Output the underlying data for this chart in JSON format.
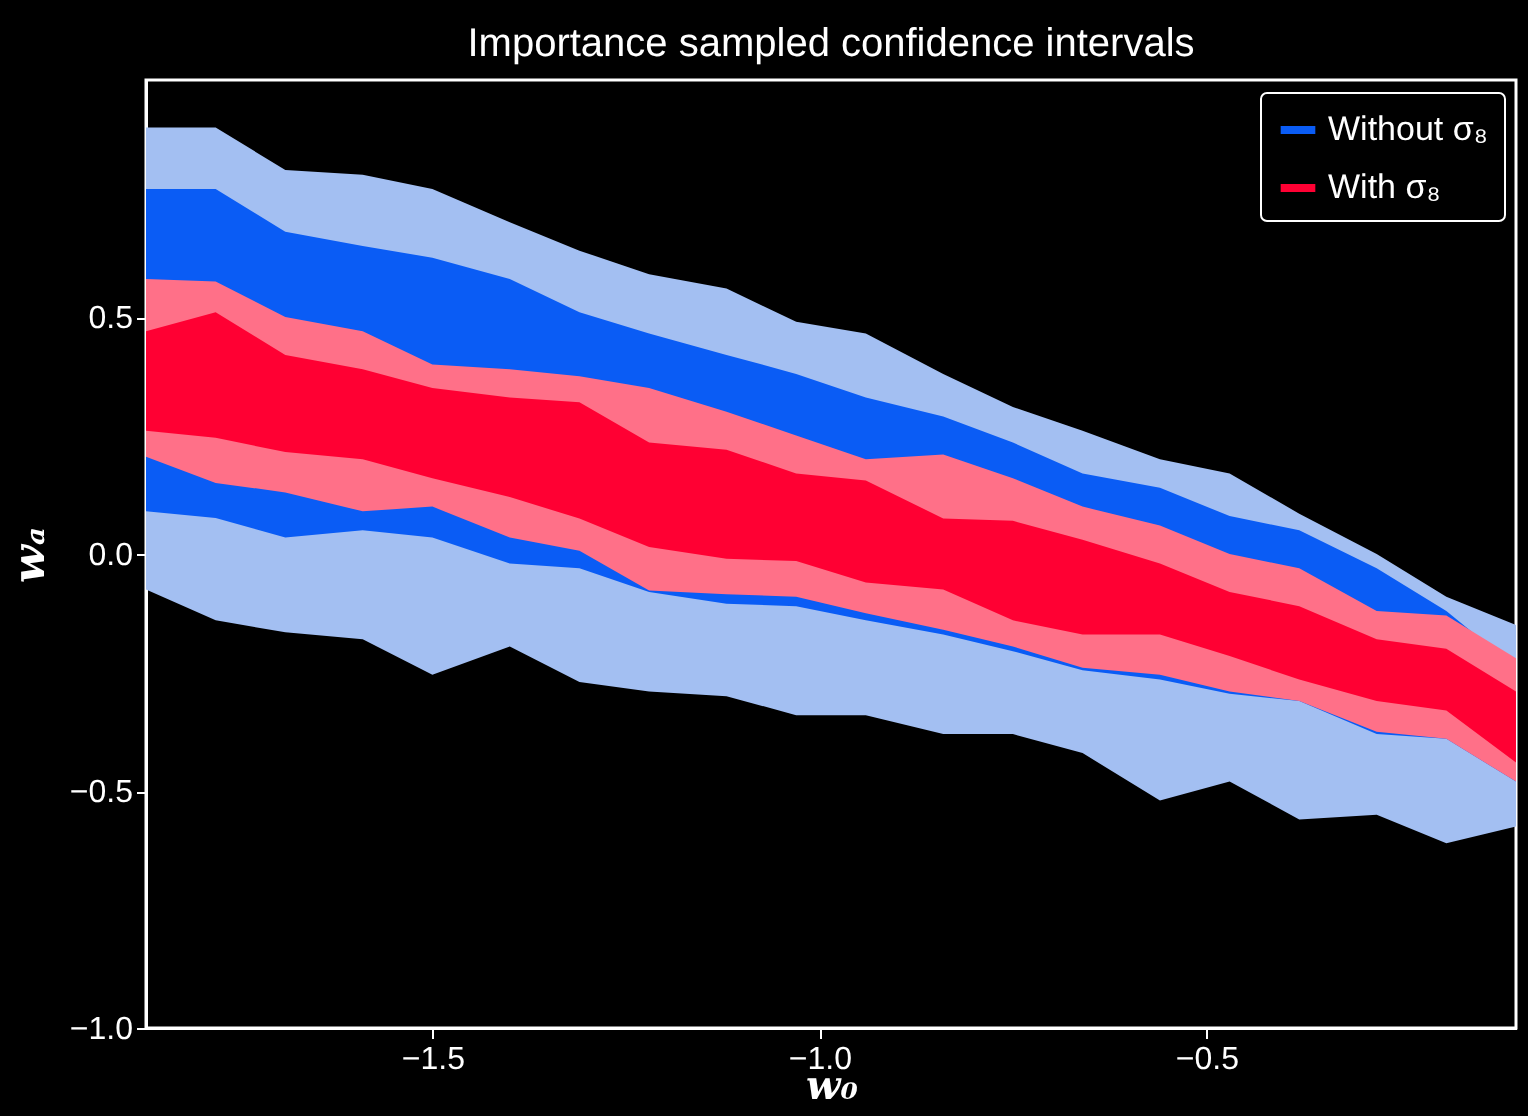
{
  "chart_data": {
    "type": "area",
    "title": "Importance sampled confidence intervals",
    "xlabel": "w₀",
    "ylabel": "wₐ",
    "x": [
      -1.87,
      -1.78,
      -1.69,
      -1.59,
      -1.5,
      -1.4,
      -1.31,
      -1.22,
      -1.12,
      -1.03,
      -0.94,
      -0.84,
      -0.75,
      -0.66,
      -0.56,
      -0.47,
      -0.38,
      -0.28,
      -0.19,
      -0.1
    ],
    "xlim": [
      -1.87,
      -0.1
    ],
    "xticks": [
      {
        "value": -1.5,
        "label": "−1.5"
      },
      {
        "value": -1,
        "label": "−1.0"
      },
      {
        "value": -0.5,
        "label": "−0.5"
      }
    ],
    "ylim": [
      -1,
      1
    ],
    "yticks": [
      {
        "value": -1,
        "label": "−1.0"
      },
      {
        "value": -0.5,
        "label": "−0.5"
      },
      {
        "value": 0,
        "label": "0.0"
      },
      {
        "value": 0.5,
        "label": "0.5"
      }
    ],
    "grid": false,
    "legend": "top right",
    "series": [
      {
        "color": "#a3bff2",
        "lower": [
          -0.075,
          -0.14,
          -0.165,
          -0.18,
          -0.255,
          -0.195,
          -0.27,
          -0.29,
          -0.3,
          -0.34,
          -0.34,
          -0.38,
          -0.38,
          -0.42,
          -0.52,
          -0.48,
          -0.56,
          -0.55,
          -0.61,
          -0.575
        ],
        "values": [
          null,
          null,
          null,
          null,
          null,
          null,
          null,
          null,
          null,
          null,
          null,
          null,
          null,
          null,
          null,
          null,
          null,
          null,
          null,
          null
        ],
        "upper": [
          0.9,
          0.9,
          0.81,
          0.8,
          0.77,
          0.7,
          0.64,
          0.59,
          0.56,
          0.49,
          0.465,
          0.38,
          0.31,
          0.26,
          0.2,
          0.17,
          0.085,
          0.0,
          -0.09,
          -0.15
        ]
      },
      {
        "name": "Without σ₈",
        "color": "#0a5cf5",
        "lower": [
          0.09,
          0.076,
          0.035,
          0.05,
          0.035,
          -0.02,
          -0.03,
          -0.08,
          -0.105,
          -0.11,
          -0.14,
          -0.17,
          -0.205,
          -0.245,
          -0.265,
          -0.295,
          -0.31,
          -0.38,
          -0.39,
          -0.48
        ],
        "values": [
          null,
          null,
          null,
          null,
          null,
          null,
          null,
          null,
          null,
          null,
          null,
          null,
          null,
          null,
          null,
          null,
          null,
          null,
          null,
          null
        ],
        "upper": [
          0.77,
          0.77,
          0.68,
          0.65,
          0.625,
          0.58,
          0.51,
          0.465,
          0.42,
          0.38,
          0.33,
          0.29,
          0.235,
          0.17,
          0.14,
          0.08,
          0.05,
          -0.03,
          -0.12,
          -0.24
        ]
      },
      {
        "color": "#ff7088",
        "lower": [
          0.205,
          0.15,
          0.13,
          0.09,
          0.1,
          0.035,
          0.007,
          -0.077,
          -0.085,
          -0.09,
          -0.125,
          -0.16,
          -0.195,
          -0.24,
          -0.255,
          -0.29,
          -0.31,
          -0.375,
          -0.39,
          -0.48
        ],
        "values": [
          null,
          null,
          null,
          null,
          null,
          null,
          null,
          null,
          null,
          null,
          null,
          null,
          null,
          null,
          null,
          null,
          null,
          null,
          null,
          null
        ],
        "upper": [
          0.58,
          0.575,
          0.5,
          0.47,
          0.4,
          0.39,
          0.375,
          0.35,
          0.3,
          0.25,
          0.2,
          0.21,
          0.16,
          0.1,
          0.06,
          0.0,
          -0.03,
          -0.12,
          -0.13,
          -0.22
        ]
      },
      {
        "name": "With σ₈",
        "color": "#ff0033",
        "lower": [
          0.26,
          0.245,
          0.215,
          0.2,
          0.16,
          0.12,
          0.075,
          0.015,
          -0.01,
          -0.015,
          -0.06,
          -0.075,
          -0.14,
          -0.17,
          -0.17,
          -0.215,
          -0.265,
          -0.31,
          -0.33,
          -0.44
        ],
        "values": [
          null,
          null,
          null,
          null,
          null,
          null,
          null,
          null,
          null,
          null,
          null,
          null,
          null,
          null,
          null,
          null,
          null,
          null,
          null,
          null
        ],
        "upper": [
          0.47,
          0.51,
          0.42,
          0.39,
          0.35,
          0.33,
          0.32,
          0.235,
          0.22,
          0.17,
          0.155,
          0.075,
          0.07,
          0.03,
          -0.02,
          -0.08,
          -0.11,
          -0.18,
          -0.2,
          -0.29
        ]
      }
    ]
  }
}
